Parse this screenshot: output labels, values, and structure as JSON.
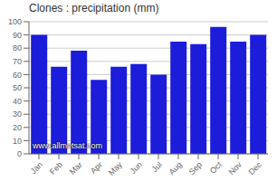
{
  "chart_data": {
    "type": "bar",
    "title": "Clones : precipitation (mm)",
    "annotation": "www.allmetsat.com",
    "categories": [
      "Jan",
      "Feb",
      "Mar",
      "Apr",
      "May",
      "Jun",
      "Jul",
      "Aug",
      "Sep",
      "Oct",
      "Nov",
      "Dec"
    ],
    "values": [
      90,
      66,
      78,
      56,
      66,
      68,
      60,
      85,
      83,
      96,
      85,
      90
    ],
    "color": "#1c1cdb",
    "ylim": [
      0,
      100
    ],
    "yticks": [
      0,
      10,
      20,
      30,
      40,
      50,
      60,
      70,
      80,
      90,
      100
    ],
    "grid": true
  }
}
